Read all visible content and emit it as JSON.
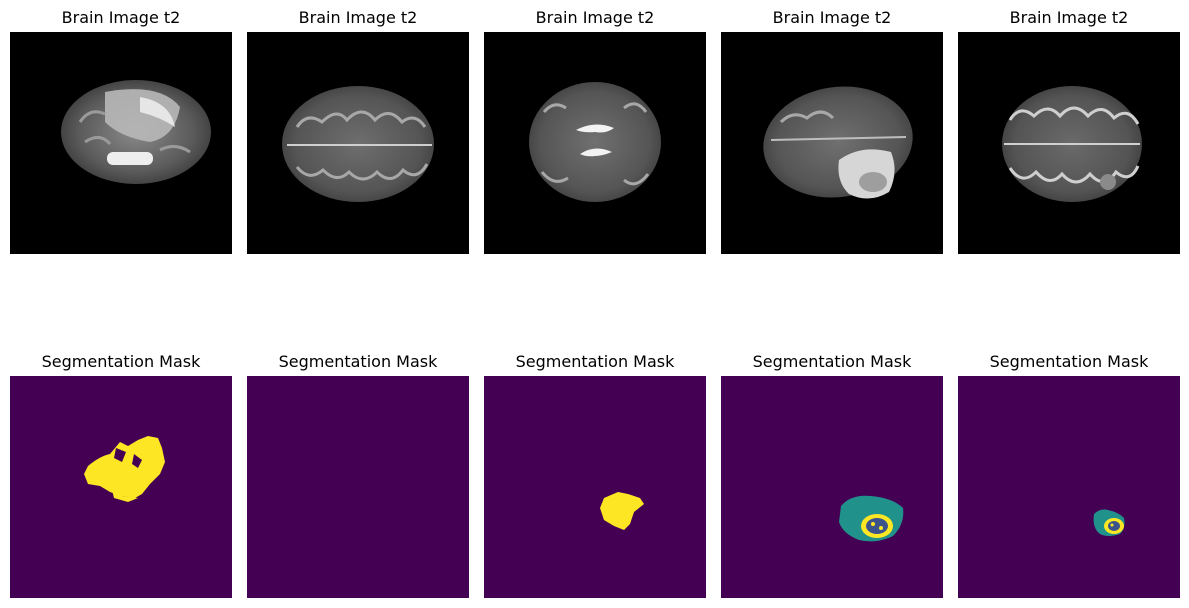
{
  "row_titles": {
    "top": "Brain Image t2",
    "bottom": "Segmentation Mask"
  },
  "colors": {
    "background": "#000000",
    "mask_background": "#440154",
    "mask_label_a": "#fde725",
    "mask_label_b": "#21918c",
    "mask_label_c": "#3b528b"
  },
  "panels": [
    {
      "index": 1,
      "brain_title": "Brain Image t2",
      "mask_title": "Segmentation Mask",
      "mask_labels": [
        "yellow"
      ]
    },
    {
      "index": 2,
      "brain_title": "Brain Image t2",
      "mask_title": "Segmentation Mask",
      "mask_labels": []
    },
    {
      "index": 3,
      "brain_title": "Brain Image t2",
      "mask_title": "Segmentation Mask",
      "mask_labels": [
        "yellow"
      ]
    },
    {
      "index": 4,
      "brain_title": "Brain Image t2",
      "mask_title": "Segmentation Mask",
      "mask_labels": [
        "teal",
        "yellow",
        "blue"
      ]
    },
    {
      "index": 5,
      "brain_title": "Brain Image t2",
      "mask_title": "Segmentation Mask",
      "mask_labels": [
        "teal",
        "yellow",
        "blue"
      ]
    }
  ]
}
